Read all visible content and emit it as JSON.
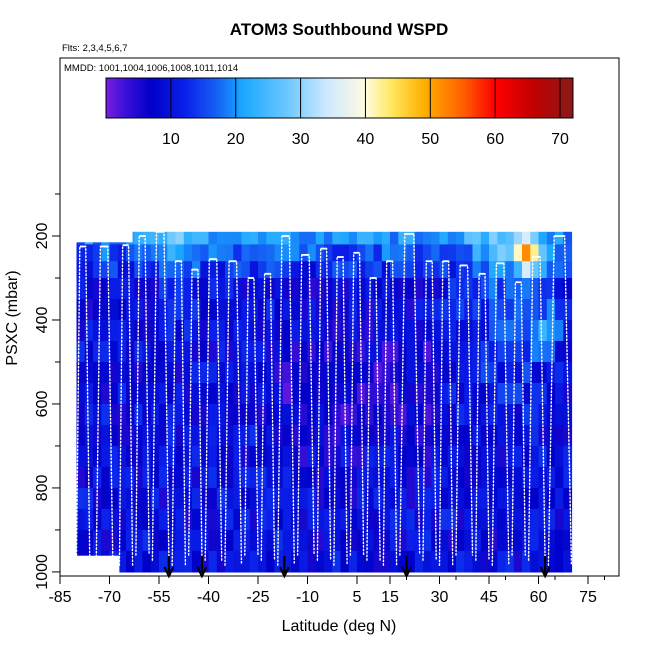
{
  "chart_data": {
    "type": "heatmap",
    "title": "ATOM3 Southbound WSPD",
    "flights_note": "Flts: 2,3,4,5,6,7",
    "dates_note": "MMDD: 1001,1004,1006,1008,1011,1014",
    "xlabel": "Latitude (deg N)",
    "ylabel": "PSXC (mbar)",
    "xlim": [
      -85,
      85
    ],
    "ylim": [
      1000,
      100
    ],
    "x_ticks": [
      -85,
      -70,
      -55,
      -40,
      -25,
      -10,
      5,
      15,
      30,
      45,
      60,
      75
    ],
    "y_ticks": [
      200,
      400,
      600,
      800,
      1000
    ],
    "colorbar": {
      "ticks": [
        10,
        20,
        30,
        40,
        50,
        60,
        70
      ],
      "range": [
        0,
        72
      ],
      "stops": [
        {
          "v": 0,
          "c": "#7a1de0"
        },
        {
          "v": 3,
          "c": "#3a10d8"
        },
        {
          "v": 7,
          "c": "#0000c8"
        },
        {
          "v": 12,
          "c": "#0a1ee8"
        },
        {
          "v": 17,
          "c": "#1560f5"
        },
        {
          "v": 21,
          "c": "#1aa6ff"
        },
        {
          "v": 28,
          "c": "#6cc8ff"
        },
        {
          "v": 34,
          "c": "#cfe8ff"
        },
        {
          "v": 40,
          "c": "#fffbe0"
        },
        {
          "v": 44,
          "c": "#ffe860"
        },
        {
          "v": 49,
          "c": "#ffb000"
        },
        {
          "v": 55,
          "c": "#ff6000"
        },
        {
          "v": 60,
          "c": "#ff0000"
        },
        {
          "v": 66,
          "c": "#c00000"
        },
        {
          "v": 72,
          "c": "#8a1a1a"
        }
      ]
    },
    "wind_field": {
      "lat_bins": [
        -80,
        -77.5,
        -75,
        -72.5,
        -70,
        -67.5,
        -65,
        -62.5,
        -60,
        -57.5,
        -55,
        -52.5,
        -50,
        -47.5,
        -45,
        -42.5,
        -40,
        -37.5,
        -35,
        -32.5,
        -30,
        -27.5,
        -25,
        -22.5,
        -20,
        -17.5,
        -15,
        -12.5,
        -10,
        -7.5,
        -5,
        -2.5,
        0,
        2.5,
        5,
        7.5,
        10,
        12.5,
        15,
        17.5,
        20,
        22.5,
        25,
        27.5,
        30,
        32.5,
        35,
        37.5,
        40,
        42.5,
        45,
        47.5,
        50,
        52.5,
        55,
        57.5,
        60,
        62.5,
        65,
        67.5,
        70
      ],
      "pressure_bins": [
        190,
        220,
        260,
        300,
        350,
        400,
        450,
        500,
        550,
        600,
        650,
        700,
        750,
        800,
        850,
        900,
        950,
        1000
      ],
      "coverage": [
        {
          "lat_min": -80,
          "lat_max": -67,
          "p_min": 215,
          "p_max": 960
        },
        {
          "lat_min": -67,
          "lat_max": -63,
          "p_min": 215,
          "p_max": 1000
        },
        {
          "lat_min": -63,
          "lat_max": 70,
          "p_min": 175,
          "p_max": 1000
        },
        {
          "lat_min": 70,
          "lat_max": 72,
          "p_min": 260,
          "p_max": 975
        }
      ]
    },
    "flight_profiles": [
      {
        "lat_start": -80,
        "lat_end": -76,
        "p_top": 225
      },
      {
        "lat_start": -74,
        "lat_end": -69,
        "p_top": 225
      },
      {
        "lat_start": -67,
        "lat_end": -63,
        "p_top": 222
      },
      {
        "lat_start": -62,
        "lat_end": -58,
        "p_top": 200
      },
      {
        "lat_start": -57,
        "lat_end": -52,
        "p_top": 190
      },
      {
        "lat_start": -51,
        "lat_end": -47,
        "p_top": 260
      },
      {
        "lat_start": -46,
        "lat_end": -42,
        "p_top": 280
      },
      {
        "lat_start": -41,
        "lat_end": -36,
        "p_top": 255
      },
      {
        "lat_start": -35,
        "lat_end": -30,
        "p_top": 260
      },
      {
        "lat_start": -29,
        "lat_end": -25,
        "p_top": 300
      },
      {
        "lat_start": -24,
        "lat_end": -20,
        "p_top": 290
      },
      {
        "lat_start": -19,
        "lat_end": -14,
        "p_top": 200
      },
      {
        "lat_start": -13,
        "lat_end": -8,
        "p_top": 245
      },
      {
        "lat_start": -7,
        "lat_end": -3,
        "p_top": 230
      },
      {
        "lat_start": -2,
        "lat_end": 2,
        "p_top": 250
      },
      {
        "lat_start": 3,
        "lat_end": 7,
        "p_top": 240
      },
      {
        "lat_start": 8,
        "lat_end": 12,
        "p_top": 300
      },
      {
        "lat_start": 13,
        "lat_end": 17,
        "p_top": 260
      },
      {
        "lat_start": 18,
        "lat_end": 24,
        "p_top": 195
      },
      {
        "lat_start": 25,
        "lat_end": 29,
        "p_top": 260
      },
      {
        "lat_start": 30,
        "lat_end": 34,
        "p_top": 260
      },
      {
        "lat_start": 35,
        "lat_end": 40,
        "p_top": 270
      },
      {
        "lat_start": 41,
        "lat_end": 45,
        "p_top": 290
      },
      {
        "lat_start": 46,
        "lat_end": 51,
        "p_top": 265
      },
      {
        "lat_start": 52,
        "lat_end": 56,
        "p_top": 310
      },
      {
        "lat_start": 57,
        "lat_end": 62,
        "p_top": 250
      },
      {
        "lat_start": 63,
        "lat_end": 70,
        "p_top": 200
      }
    ],
    "arrow_latitudes": [
      -52,
      -42,
      -17,
      20,
      62
    ]
  }
}
